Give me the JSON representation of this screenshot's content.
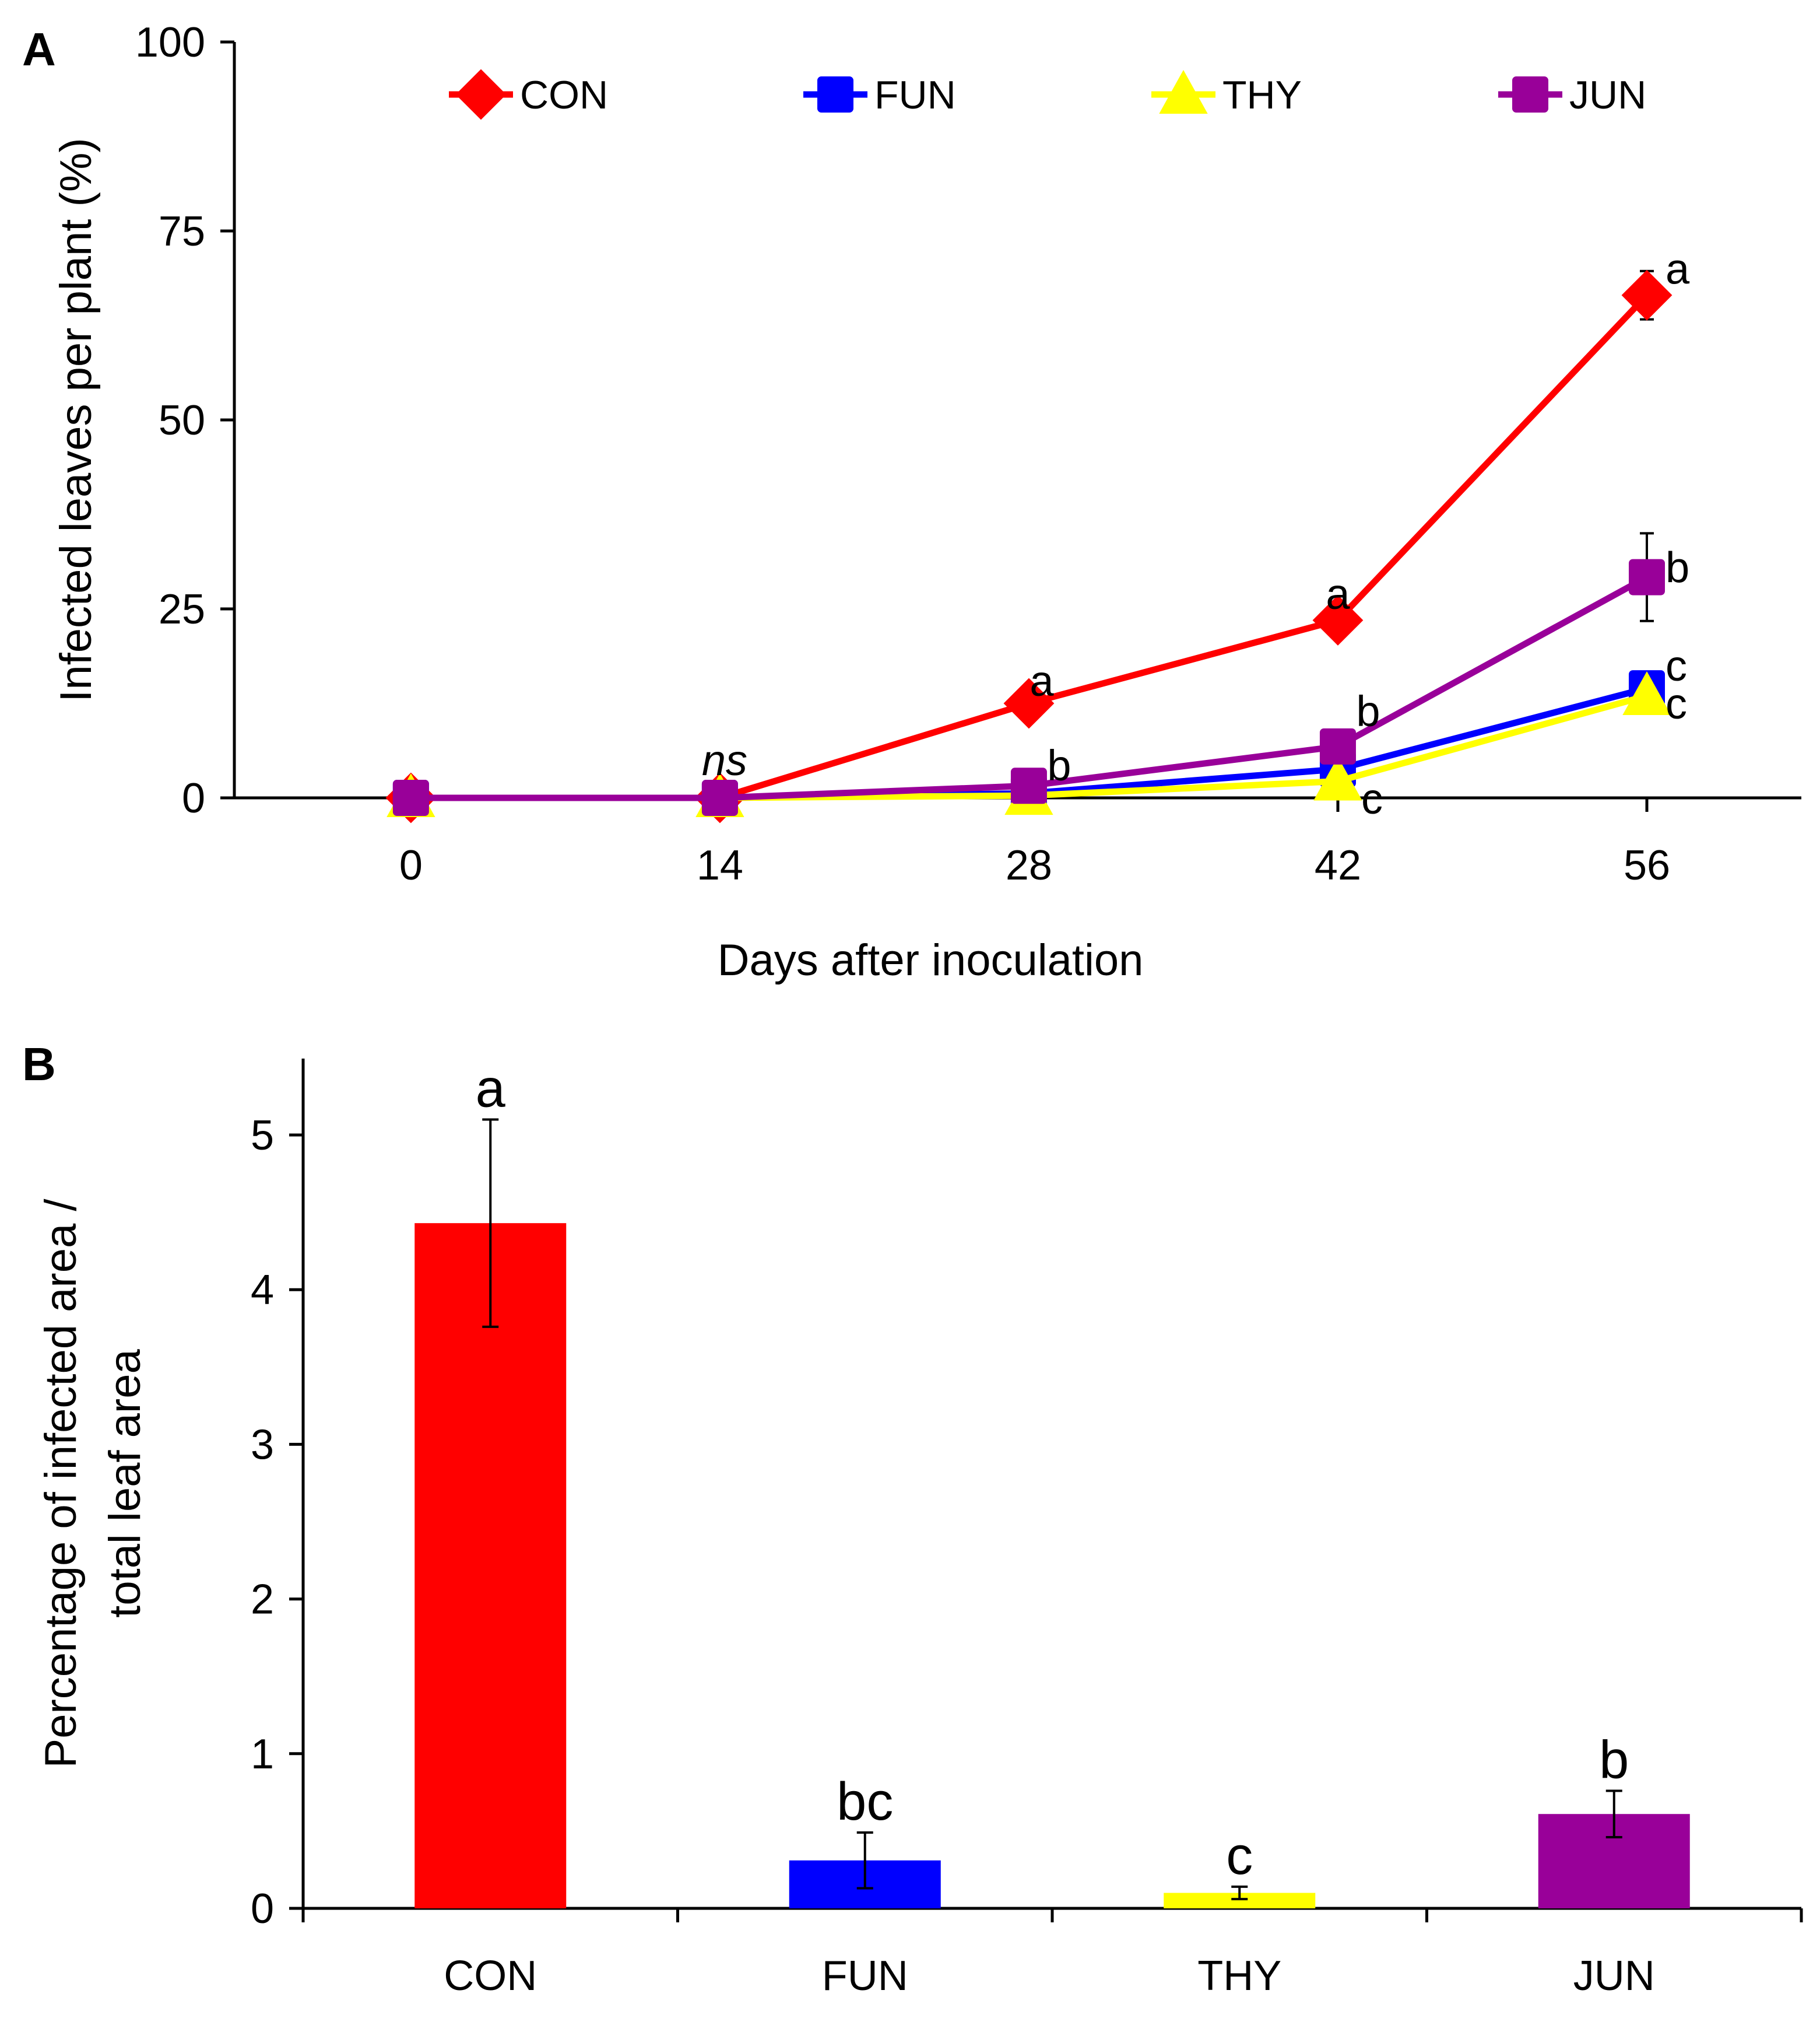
{
  "colors": {
    "CON": "#ff0000",
    "FUN": "#0000ff",
    "THY": "#ffff00",
    "JUN": "#990099"
  },
  "chart_data": [
    {
      "type": "line",
      "panel": "A",
      "xlabel": "Days after inoculation",
      "ylabel": "Infected leaves per plant (%)",
      "x": [
        0,
        14,
        28,
        42,
        56
      ],
      "x_tick_labels": [
        "0",
        "14",
        "28",
        "42",
        "56"
      ],
      "xlim": [
        -8,
        63
      ],
      "ylim": [
        0,
        100
      ],
      "y_ticks": [
        0,
        25,
        50,
        75,
        100
      ],
      "y_tick_labels": [
        "0",
        "25",
        "50",
        "75",
        "100"
      ],
      "legend_position": "top",
      "series": [
        {
          "name": "CON",
          "marker": "diamond",
          "values": [
            0,
            0,
            12.5,
            23.5,
            66.5
          ],
          "errors": [
            0,
            0,
            0,
            0,
            3.2
          ]
        },
        {
          "name": "FUN",
          "marker": "square",
          "values": [
            0,
            0,
            0.6,
            3.8,
            14.5
          ],
          "errors": [
            0,
            0,
            0,
            0,
            1.5
          ]
        },
        {
          "name": "THY",
          "marker": "triangle",
          "values": [
            0,
            0,
            0.3,
            2.2,
            13.5
          ],
          "errors": [
            0,
            0,
            0,
            0,
            1.5
          ]
        },
        {
          "name": "JUN",
          "marker": "square",
          "values": [
            0,
            0,
            1.6,
            6.8,
            29.2
          ],
          "errors": [
            0,
            0,
            0,
            0,
            5.8
          ]
        }
      ],
      "annotations": [
        {
          "text": "ns",
          "x": 14,
          "y": 3,
          "style": "italic"
        },
        {
          "text": "a",
          "x": 28,
          "y": 13.5
        },
        {
          "text": "b",
          "x": 28,
          "y": 2.3
        },
        {
          "text": "a",
          "x": 42,
          "y": 25
        },
        {
          "text": "b",
          "x": 42,
          "y": 9.5
        },
        {
          "text": "c",
          "x": 42,
          "y": 1
        },
        {
          "text": "a",
          "x": 56,
          "y": 68
        },
        {
          "text": "b",
          "x": 56,
          "y": 28.5
        },
        {
          "text": "c",
          "x": 56,
          "y": 15.5
        },
        {
          "text": "c",
          "x": 56,
          "y": 10.5
        }
      ]
    },
    {
      "type": "bar",
      "panel": "B",
      "xlabel": "",
      "ylabel_lines": [
        "Percentage of infected area /",
        "total leaf area"
      ],
      "categories": [
        "CON",
        "FUN",
        "THY",
        "JUN"
      ],
      "values": [
        4.43,
        0.31,
        0.1,
        0.61
      ],
      "errors": [
        0.67,
        0.18,
        0.04,
        0.15
      ],
      "ylim": [
        0,
        5.5
      ],
      "y_ticks": [
        0,
        1,
        2,
        3,
        4,
        5
      ],
      "y_tick_labels": [
        "0",
        "1",
        "2",
        "3",
        "4",
        "5"
      ],
      "labels": [
        "a",
        "bc",
        "c",
        "b"
      ]
    }
  ]
}
